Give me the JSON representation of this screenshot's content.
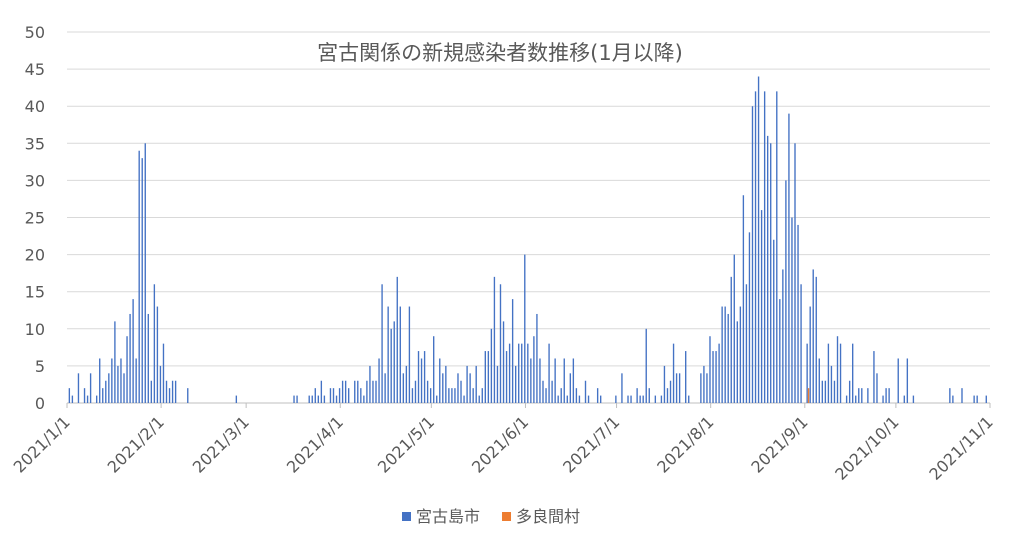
{
  "chart_data": {
    "type": "bar",
    "title": "宮古関係の新規感染者数推移(1月以降)",
    "xlim": [
      "2021/1/1",
      "2021/11/1"
    ],
    "xticks": [
      "2021/1/1",
      "2021/2/1",
      "2021/3/1",
      "2021/4/1",
      "2021/5/1",
      "2021/6/1",
      "2021/7/1",
      "2021/8/1",
      "2021/9/1",
      "2021/10/1",
      "2021/11/1"
    ],
    "ylim": [
      0,
      50
    ],
    "yticks": [
      0,
      5,
      10,
      15,
      20,
      25,
      30,
      35,
      40,
      45,
      50
    ],
    "grid": true,
    "legend": "bottom",
    "series": [
      {
        "name": "宮古島市",
        "color": "#4472c4",
        "x": [
          "2021/1/2",
          "2021/1/3",
          "2021/1/5",
          "2021/1/7",
          "2021/1/8",
          "2021/1/9",
          "2021/1/11",
          "2021/1/12",
          "2021/1/13",
          "2021/1/14",
          "2021/1/15",
          "2021/1/16",
          "2021/1/17",
          "2021/1/18",
          "2021/1/19",
          "2021/1/20",
          "2021/1/21",
          "2021/1/22",
          "2021/1/23",
          "2021/1/24",
          "2021/1/25",
          "2021/1/26",
          "2021/1/27",
          "2021/1/28",
          "2021/1/29",
          "2021/1/30",
          "2021/1/31",
          "2021/2/1",
          "2021/2/2",
          "2021/2/3",
          "2021/2/4",
          "2021/2/5",
          "2021/2/6",
          "2021/2/10",
          "2021/2/26",
          "2021/3/17",
          "2021/3/18",
          "2021/3/22",
          "2021/3/23",
          "2021/3/24",
          "2021/3/25",
          "2021/3/26",
          "2021/3/27",
          "2021/3/29",
          "2021/3/30",
          "2021/3/31",
          "2021/4/1",
          "2021/4/2",
          "2021/4/3",
          "2021/4/4",
          "2021/4/6",
          "2021/4/7",
          "2021/4/8",
          "2021/4/9",
          "2021/4/10",
          "2021/4/11",
          "2021/4/12",
          "2021/4/13",
          "2021/4/14",
          "2021/4/15",
          "2021/4/16",
          "2021/4/17",
          "2021/4/18",
          "2021/4/19",
          "2021/4/20",
          "2021/4/21",
          "2021/4/22",
          "2021/4/23",
          "2021/4/24",
          "2021/4/25",
          "2021/4/26",
          "2021/4/27",
          "2021/4/28",
          "2021/4/29",
          "2021/4/30",
          "2021/5/1",
          "2021/5/2",
          "2021/5/3",
          "2021/5/4",
          "2021/5/5",
          "2021/5/6",
          "2021/5/7",
          "2021/5/8",
          "2021/5/9",
          "2021/5/10",
          "2021/5/11",
          "2021/5/12",
          "2021/5/13",
          "2021/5/14",
          "2021/5/15",
          "2021/5/16",
          "2021/5/17",
          "2021/5/18",
          "2021/5/19",
          "2021/5/20",
          "2021/5/21",
          "2021/5/22",
          "2021/5/23",
          "2021/5/24",
          "2021/5/25",
          "2021/5/26",
          "2021/5/27",
          "2021/5/28",
          "2021/5/29",
          "2021/5/30",
          "2021/5/31",
          "2021/6/1",
          "2021/6/2",
          "2021/6/3",
          "2021/6/4",
          "2021/6/5",
          "2021/6/6",
          "2021/6/7",
          "2021/6/8",
          "2021/6/9",
          "2021/6/10",
          "2021/6/11",
          "2021/6/12",
          "2021/6/13",
          "2021/6/14",
          "2021/6/15",
          "2021/6/16",
          "2021/6/17",
          "2021/6/18",
          "2021/6/19",
          "2021/6/21",
          "2021/6/22",
          "2021/6/25",
          "2021/6/26",
          "2021/7/1",
          "2021/7/3",
          "2021/7/5",
          "2021/7/6",
          "2021/7/8",
          "2021/7/9",
          "2021/7/10",
          "2021/7/11",
          "2021/7/12",
          "2021/7/14",
          "2021/7/16",
          "2021/7/17",
          "2021/7/18",
          "2021/7/19",
          "2021/7/20",
          "2021/7/21",
          "2021/7/22",
          "2021/7/24",
          "2021/7/25",
          "2021/7/29",
          "2021/7/30",
          "2021/7/31",
          "2021/8/1",
          "2021/8/2",
          "2021/8/3",
          "2021/8/4",
          "2021/8/5",
          "2021/8/6",
          "2021/8/7",
          "2021/8/8",
          "2021/8/9",
          "2021/8/10",
          "2021/8/11",
          "2021/8/12",
          "2021/8/13",
          "2021/8/14",
          "2021/8/15",
          "2021/8/16",
          "2021/8/17",
          "2021/8/18",
          "2021/8/19",
          "2021/8/20",
          "2021/8/21",
          "2021/8/22",
          "2021/8/23",
          "2021/8/24",
          "2021/8/25",
          "2021/8/26",
          "2021/8/27",
          "2021/8/28",
          "2021/8/29",
          "2021/8/30",
          "2021/8/31",
          "2021/9/2",
          "2021/9/3",
          "2021/9/4",
          "2021/9/5",
          "2021/9/6",
          "2021/9/7",
          "2021/9/8",
          "2021/9/9",
          "2021/9/10",
          "2021/9/11",
          "2021/9/12",
          "2021/9/13",
          "2021/9/15",
          "2021/9/16",
          "2021/9/17",
          "2021/9/18",
          "2021/9/19",
          "2021/9/20",
          "2021/9/22",
          "2021/9/24",
          "2021/9/25",
          "2021/9/27",
          "2021/9/28",
          "2021/9/29",
          "2021/10/2",
          "2021/10/4",
          "2021/10/5",
          "2021/10/7",
          "2021/10/19",
          "2021/10/20",
          "2021/10/23",
          "2021/10/27",
          "2021/10/28",
          "2021/10/31"
        ],
        "values": [
          2,
          1,
          4,
          2,
          1,
          4,
          1,
          6,
          2,
          3,
          4,
          6,
          11,
          5,
          6,
          4,
          9,
          12,
          14,
          6,
          34,
          33,
          35,
          12,
          3,
          16,
          13,
          5,
          8,
          3,
          2,
          3,
          3,
          2,
          1,
          1,
          1,
          1,
          1,
          2,
          1,
          3,
          1,
          2,
          2,
          1,
          2,
          3,
          3,
          2,
          3,
          3,
          2,
          1,
          3,
          5,
          3,
          3,
          6,
          16,
          4,
          13,
          10,
          11,
          17,
          13,
          4,
          5,
          13,
          2,
          3,
          7,
          6,
          7,
          3,
          2,
          9,
          1,
          6,
          4,
          5,
          2,
          2,
          2,
          4,
          3,
          1,
          5,
          4,
          2,
          5,
          1,
          2,
          7,
          7,
          10,
          17,
          5,
          16,
          11,
          7,
          8,
          14,
          5,
          8,
          8,
          20,
          8,
          6,
          9,
          12,
          6,
          3,
          2,
          8,
          3,
          6,
          1,
          2,
          6,
          1,
          4,
          6,
          2,
          1,
          3,
          1,
          2,
          1,
          1,
          4,
          1,
          1,
          2,
          1,
          1,
          10,
          2,
          1,
          1,
          5,
          2,
          3,
          8,
          4,
          4,
          7,
          1,
          4,
          5,
          4,
          9,
          7,
          7,
          8,
          13,
          13,
          12,
          17,
          20,
          11,
          13,
          28,
          16,
          23,
          40,
          42,
          44,
          26,
          42,
          36,
          35,
          22,
          42,
          14,
          18,
          30,
          39,
          25,
          35,
          24,
          16,
          8,
          13,
          18,
          17,
          6,
          3,
          3,
          8,
          5,
          3,
          9,
          8,
          1,
          3,
          8,
          1,
          2,
          2,
          2,
          7,
          4,
          1,
          2,
          2,
          6,
          1,
          6,
          1,
          2,
          1,
          2,
          1,
          1,
          1
        ]
      },
      {
        "name": "多良間村",
        "color": "#ed7d31",
        "x": [
          "2021/9/2"
        ],
        "values": [
          2
        ]
      }
    ]
  }
}
